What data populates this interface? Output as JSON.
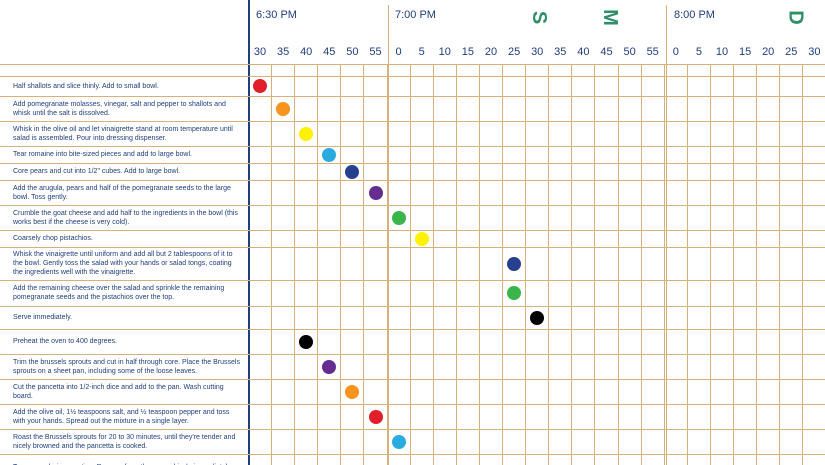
{
  "timeline": {
    "hours": [
      "6:30 PM",
      "7:00 PM",
      "8:00 PM"
    ],
    "ticks": [
      "30",
      "35",
      "40",
      "45",
      "50",
      "55",
      "0",
      "5",
      "10",
      "15",
      "20",
      "25",
      "30",
      "35",
      "40",
      "45",
      "50",
      "55",
      "0",
      "5",
      "10",
      "15",
      "20",
      "25",
      "30"
    ],
    "letters": [
      "S",
      "M",
      "D"
    ]
  },
  "tasks": [
    {
      "text": "Half shallots and slice thinly. Add to small bowl.",
      "tick": 0,
      "color": "#e21e2b"
    },
    {
      "text": "Add pomegranate molasses, vinegar, salt and pepper to shallots and whisk until the salt is dissolved.",
      "tick": 1,
      "color": "#f7941d"
    },
    {
      "text": "Whisk in the olive oil and let vinaigrette stand at room temperature until salad is assembled. Pour into dressing dispenser.",
      "tick": 2,
      "color": "#fff200"
    },
    {
      "text": "Tear romaine into bite-sized pieces and add to large bowl.",
      "tick": 3,
      "color": "#29abe2"
    },
    {
      "text": "Core pears and cut into 1/2\" cubes. Add to large bowl.",
      "tick": 4,
      "color": "#263f8e"
    },
    {
      "text": "Add the arugula, pears and half of the pomegranate seeds to the large bowl. Toss gently.",
      "tick": 5,
      "color": "#662d91"
    },
    {
      "text": "Crumble the goat cheese and add half to the ingredients in the bowl (this works best if the cheese is very cold).",
      "tick": 6,
      "color": "#39b54a"
    },
    {
      "text": "Coarsely chop pistachios.",
      "tick": 7,
      "color": "#fff200"
    },
    {
      "text": "Whisk the vinaigrette until uniform and add all but 2 tablespoons of it to the bowl. Gently toss the salad with your hands or salad tongs, coating the ingredients well with the vinaigrette.",
      "tick": 11,
      "color": "#263f8e"
    },
    {
      "text": "Add the remaining cheese over the salad and sprinkle the remaining pomegranate seeds and the pistachios over the top.",
      "tick": 11,
      "color": "#39b54a"
    },
    {
      "text": "Serve immediately.",
      "tick": 12,
      "color": "#000000"
    },
    {
      "text": "Preheat the oven to 400 degrees.",
      "tick": 2,
      "color": "#000000"
    },
    {
      "text": "Trim the brussels sprouts and cut in half through core. Place the Brussels sprouts on a sheet pan, including some of the loose leaves.",
      "tick": 3,
      "color": "#662d91"
    },
    {
      "text": "Cut the pancetta into 1/2-inch dice and add to the pan. Wash cutting board.",
      "tick": 4,
      "color": "#f7941d"
    },
    {
      "text": "Add the olive oil, 1½ teaspoons salt, and ½ teaspoon pepper and toss with your hands. Spread out the mixture in a single layer.",
      "tick": 5,
      "color": "#e21e2b"
    },
    {
      "text": "Roast the Brussels sprouts for 20 to 30 minutes, until they're tender and nicely browned and the pancetta is cooked.",
      "tick": 6,
      "color": "#29abe2"
    },
    {
      "text": "Toss once during roasting. Remove from the oven, drizzle immediately",
      "tick": null,
      "color": null
    }
  ],
  "colors": {
    "text": "#1f3e7c",
    "grid": "#d7b179",
    "axis": "#1f3e7c",
    "letters": "#2f8f67"
  }
}
